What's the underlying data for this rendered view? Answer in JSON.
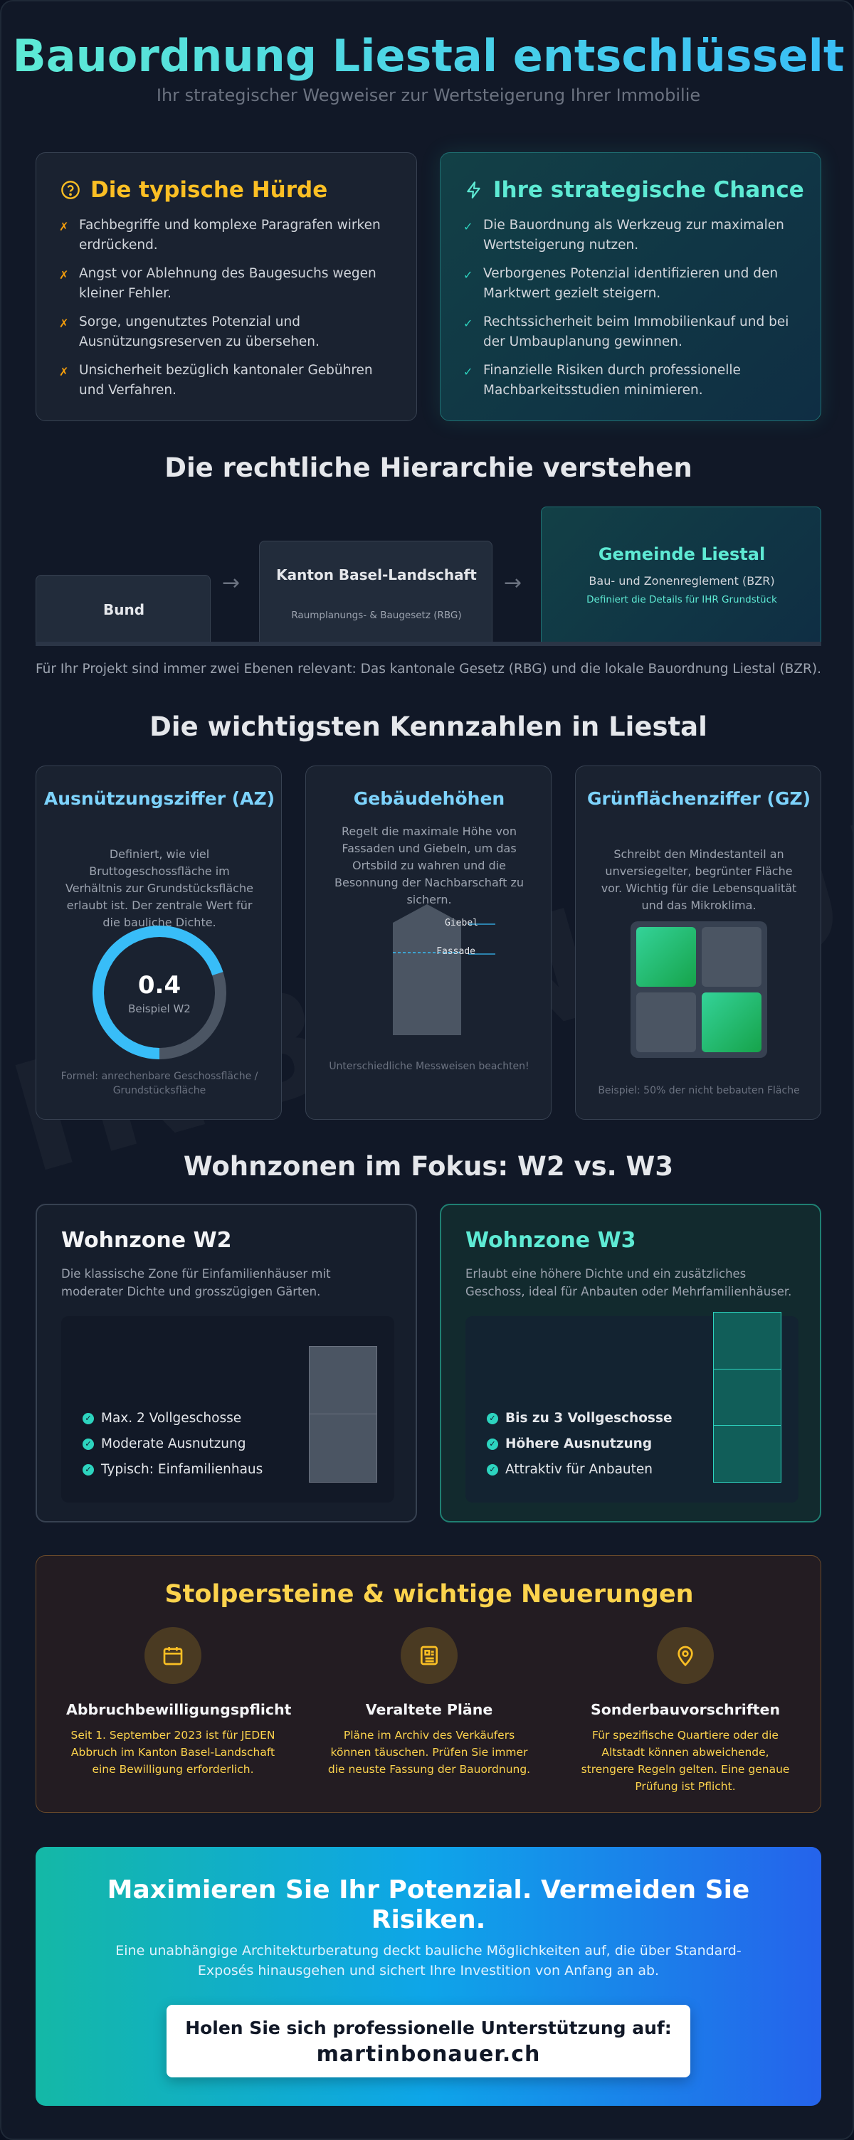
{
  "header": {
    "title": "Bauordnung Liestal entschlüsselt",
    "subtitle": "Ihr strategischer Wegweiser zur Wertsteigerung Ihrer Immobilie"
  },
  "problem": {
    "icon": "question-circle-icon",
    "title": "Die typische Hürde",
    "marker": "✗",
    "items": [
      "Fachbegriffe und komplexe Paragrafen wirken erdrückend.",
      "Angst vor Ablehnung des Baugesuchs wegen kleiner Fehler.",
      "Sorge, ungenutztes Potenzial und Ausnützungsreserven zu übersehen.",
      "Unsicherheit bezüglich kantonaler Gebühren und Verfahren."
    ]
  },
  "chance": {
    "icon": "lightning-icon",
    "title": "Ihre strategische Chance",
    "marker": "✓",
    "items": [
      "Die Bauordnung als Werkzeug zur maximalen Wertsteigerung nutzen.",
      "Verborgenes Potenzial identifizieren und den Marktwert gezielt steigern.",
      "Rechtssicherheit beim Immobilienkauf und bei der Umbauplanung gewinnen.",
      "Finanzielle Risiken durch professionelle Machbarkeitsstudien minimieren."
    ]
  },
  "hierarchy": {
    "title": "Die rechtliche Hierarchie verstehen",
    "levels": [
      {
        "name": "Bund",
        "desc": "",
        "extra": ""
      },
      {
        "name": "Kanton Basel-Landschaft",
        "desc": "Raumplanungs- & Baugesetz (RBG)",
        "extra": ""
      },
      {
        "name": "Gemeinde Liestal",
        "desc": "Bau- und Zonenreglement (BZR)",
        "extra": "Definiert die Details für IHR Grundstück"
      }
    ],
    "arrow": "→",
    "note": "Für Ihr Projekt sind immer zwei Ebenen relevant: Das kantonale Gesetz (RBG) und die lokale Bauordnung Liestal (BZR)."
  },
  "kennzahlen": {
    "title": "Die wichtigsten Kennzahlen in Liestal",
    "az": {
      "title": "Ausnützungsziffer (AZ)",
      "desc": "Definiert, wie viel Bruttogeschossfläche im Verhältnis zur Grundstücksfläche erlaubt ist. Der zentrale Wert für die bauliche Dichte.",
      "value": "0.4",
      "value_label": "Beispiel W2",
      "gauge_fraction": 0.7,
      "footer": "Formel: anrechenbare Geschossfläche / Grundstücksfläche"
    },
    "heights": {
      "title": "Gebäudehöhen",
      "desc": "Regelt die maximale Höhe von Fassaden und Giebeln, um das Ortsbild zu wahren und die Besonnung der Nachbarschaft zu sichern.",
      "label_top": "Giebel",
      "label_bottom": "Fassade",
      "footer": "Unterschiedliche Messweisen beachten!"
    },
    "gz": {
      "title": "Grünflächenziffer (GZ)",
      "desc": "Schreibt den Mindestanteil an unversiegelter, begrünter Fläche vor. Wichtig für die Lebensqualität und das Mikroklima.",
      "footer": "Beispiel: 50% der nicht bebauten Fläche",
      "green_fraction": 0.5
    }
  },
  "zones": {
    "title": "Wohnzonen im Fokus: W2 vs. W3",
    "w2": {
      "title": "Wohnzone W2",
      "desc": "Die klassische Zone für Einfamilienhäuser mit moderater Dichte und grosszügigen Gärten.",
      "floors": 2,
      "items": [
        "Max. 2 Vollgeschosse",
        "Moderate Ausnutzung",
        "Typisch: Einfamilienhaus"
      ]
    },
    "w3": {
      "title": "Wohnzone W3",
      "desc": "Erlaubt eine höhere Dichte und ein zusätzliches Geschoss, ideal für Anbauten oder Mehrfamilienhäuser.",
      "floors": 3,
      "items": [
        "Bis zu 3 Vollgeschosse",
        "Höhere Ausnutzung",
        "Attraktiv für Anbauten"
      ]
    }
  },
  "pitfalls": {
    "title": "Stolpersteine & wichtige Neuerungen",
    "items": [
      {
        "icon": "calendar-icon",
        "title": "Abbruchbewilligungspflicht",
        "text": "Seit 1. September 2023 ist für JEDEN Abbruch im Kanton Basel-Landschaft eine Bewilligung erforderlich."
      },
      {
        "icon": "newspaper-icon",
        "title": "Veraltete Pläne",
        "text": "Pläne im Archiv des Verkäufers können täuschen. Prüfen Sie immer die neuste Fassung der Bauordnung."
      },
      {
        "icon": "map-pin-icon",
        "title": "Sonderbauvorschriften",
        "text": "Für spezifische Quartiere oder die Altstadt können abweichende, strengere Regeln gelten. Eine genaue Prüfung ist Pflicht."
      }
    ]
  },
  "cta": {
    "title": "Maximieren Sie Ihr Potenzial. Vermeiden Sie Risiken.",
    "text": "Eine unabhängige Architekturberatung deckt bauliche Möglichkeiten auf, die über Standard-Exposés hinausgehen und sichert Ihre Investition von Anfang an ab.",
    "box_line1": "Holen Sie sich professionelle Unterstützung auf:",
    "box_link": "martinbonauer.ch"
  },
  "watermark": "INBONAUE",
  "colors": {
    "accent_teal": "#2dd4bf",
    "accent_blue": "#38bdf8",
    "warning": "#fbbf24",
    "background": "#111827"
  }
}
